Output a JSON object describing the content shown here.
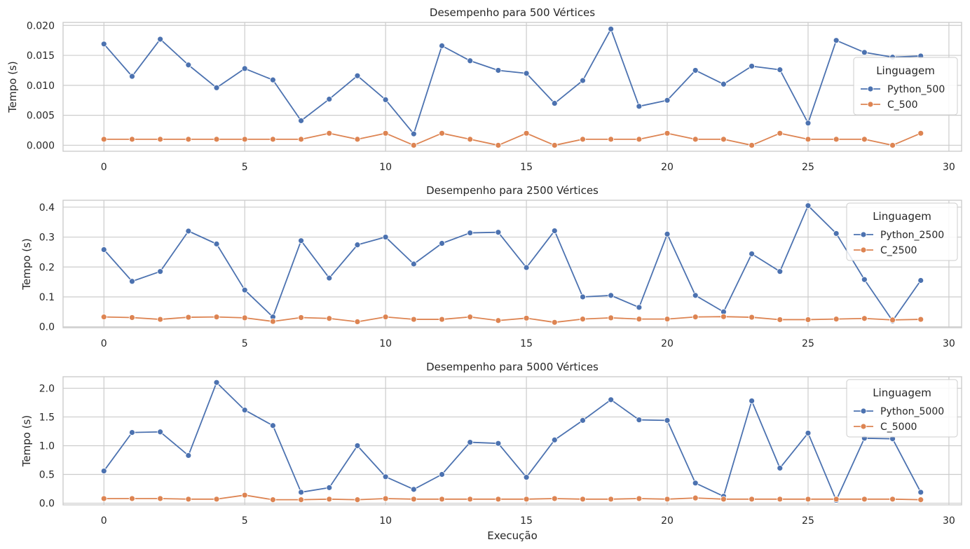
{
  "figure": {
    "xlabel": "Execução",
    "ylabel": "Tempo (s)",
    "legend_title": "Linguagem",
    "colors": {
      "python": "#4c72b0",
      "c": "#dd8452",
      "grid": "#cccccc",
      "frame": "#cccccc"
    }
  },
  "chart_data": [
    {
      "type": "line",
      "title": "Desempenho para 500 Vértices",
      "xlabel": "",
      "ylabel": "Tempo (s)",
      "legend_title": "Linguagem",
      "legend_position": "right",
      "grid": true,
      "xlim": [
        -1.45,
        30.45
      ],
      "ylim": [
        -0.001,
        0.0205
      ],
      "xticks": [
        0,
        5,
        10,
        15,
        20,
        25,
        30
      ],
      "yticks": [
        0.0,
        0.005,
        0.01,
        0.015,
        0.02
      ],
      "ytick_labels": [
        "0.000",
        "0.005",
        "0.010",
        "0.015",
        "0.020"
      ],
      "x": [
        0,
        1,
        2,
        3,
        4,
        5,
        6,
        7,
        8,
        9,
        10,
        11,
        12,
        13,
        14,
        15,
        16,
        17,
        18,
        19,
        20,
        21,
        22,
        23,
        24,
        25,
        26,
        27,
        28,
        29
      ],
      "series": [
        {
          "name": "Python_500",
          "color": "#4c72b0",
          "values": [
            0.0169,
            0.0115,
            0.0177,
            0.0134,
            0.0096,
            0.0128,
            0.0109,
            0.0041,
            0.0077,
            0.0116,
            0.0076,
            0.0019,
            0.0166,
            0.0141,
            0.0125,
            0.012,
            0.007,
            0.0108,
            0.0194,
            0.0065,
            0.0075,
            0.0125,
            0.0102,
            0.0132,
            0.0126,
            0.0037,
            0.0175,
            0.0155,
            0.0147,
            0.0149
          ]
        },
        {
          "name": "C_500",
          "color": "#dd8452",
          "values": [
            0.001,
            0.001,
            0.001,
            0.001,
            0.001,
            0.001,
            0.001,
            0.001,
            0.002,
            0.001,
            0.002,
            0.0,
            0.002,
            0.001,
            0.0,
            0.002,
            0.0,
            0.001,
            0.001,
            0.001,
            0.002,
            0.001,
            0.001,
            0.0,
            0.002,
            0.001,
            0.001,
            0.001,
            0.0,
            0.002
          ]
        }
      ]
    },
    {
      "type": "line",
      "title": "Desempenho para 2500 Vértices",
      "xlabel": "",
      "ylabel": "Tempo (s)",
      "legend_title": "Linguagem",
      "legend_position": "right",
      "grid": true,
      "xlim": [
        -1.45,
        30.45
      ],
      "ylim": [
        -0.003,
        0.423
      ],
      "xticks": [
        0,
        5,
        10,
        15,
        20,
        25,
        30
      ],
      "yticks": [
        0.0,
        0.1,
        0.2,
        0.3,
        0.4
      ],
      "ytick_labels": [
        "0.0",
        "0.1",
        "0.2",
        "0.3",
        "0.4"
      ],
      "x": [
        0,
        1,
        2,
        3,
        4,
        5,
        6,
        7,
        8,
        9,
        10,
        11,
        12,
        13,
        14,
        15,
        16,
        17,
        18,
        19,
        20,
        21,
        22,
        23,
        24,
        25,
        26,
        27,
        28,
        29
      ],
      "series": [
        {
          "name": "Python_2500",
          "color": "#4c72b0",
          "values": [
            0.258,
            0.152,
            0.185,
            0.32,
            0.277,
            0.123,
            0.033,
            0.288,
            0.163,
            0.274,
            0.3,
            0.21,
            0.279,
            0.314,
            0.316,
            0.198,
            0.321,
            0.1,
            0.105,
            0.065,
            0.31,
            0.105,
            0.05,
            0.244,
            0.185,
            0.405,
            0.312,
            0.158,
            0.02,
            0.155
          ]
        },
        {
          "name": "C_2500",
          "color": "#dd8452",
          "values": [
            0.033,
            0.031,
            0.025,
            0.032,
            0.033,
            0.03,
            0.018,
            0.031,
            0.028,
            0.017,
            0.033,
            0.025,
            0.025,
            0.033,
            0.021,
            0.029,
            0.015,
            0.026,
            0.03,
            0.026,
            0.026,
            0.033,
            0.034,
            0.032,
            0.024,
            0.024,
            0.026,
            0.028,
            0.023,
            0.025
          ]
        }
      ]
    },
    {
      "type": "line",
      "title": "Desempenho para 5000 Vértices",
      "xlabel": "Execução",
      "ylabel": "Tempo (s)",
      "legend_title": "Linguagem",
      "legend_position": "right",
      "grid": true,
      "xlim": [
        -1.45,
        30.45
      ],
      "ylim": [
        -0.03,
        2.2
      ],
      "xticks": [
        0,
        5,
        10,
        15,
        20,
        25,
        30
      ],
      "yticks": [
        0.0,
        0.5,
        1.0,
        1.5,
        2.0
      ],
      "ytick_labels": [
        "0.0",
        "0.5",
        "1.0",
        "1.5",
        "2.0"
      ],
      "x": [
        0,
        1,
        2,
        3,
        4,
        5,
        6,
        7,
        8,
        9,
        10,
        11,
        12,
        13,
        14,
        15,
        16,
        17,
        18,
        19,
        20,
        21,
        22,
        23,
        24,
        25,
        26,
        27,
        28,
        29
      ],
      "series": [
        {
          "name": "Python_5000",
          "color": "#4c72b0",
          "values": [
            0.56,
            1.23,
            1.24,
            0.83,
            2.1,
            1.62,
            1.35,
            0.19,
            0.27,
            1.0,
            0.46,
            0.24,
            0.5,
            1.06,
            1.04,
            0.45,
            1.1,
            1.44,
            1.8,
            1.45,
            1.44,
            0.35,
            0.12,
            1.78,
            0.61,
            1.22,
            0.05,
            1.13,
            1.12,
            0.19
          ]
        },
        {
          "name": "C_5000",
          "color": "#dd8452",
          "values": [
            0.08,
            0.08,
            0.08,
            0.07,
            0.07,
            0.14,
            0.06,
            0.06,
            0.07,
            0.06,
            0.08,
            0.07,
            0.07,
            0.07,
            0.07,
            0.07,
            0.08,
            0.07,
            0.07,
            0.08,
            0.07,
            0.09,
            0.07,
            0.07,
            0.07,
            0.07,
            0.07,
            0.07,
            0.07,
            0.06
          ]
        }
      ]
    }
  ]
}
